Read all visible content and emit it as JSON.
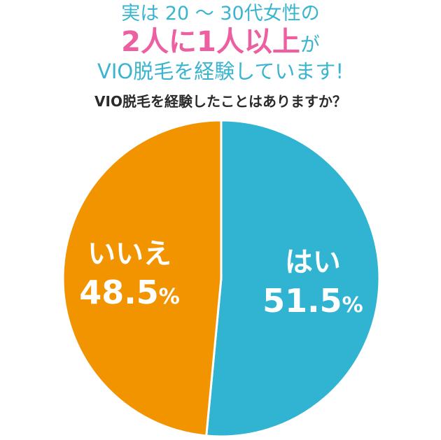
{
  "header": {
    "line1": "実は 20 ～ 30代女性の",
    "line2_emphasis": "2人に1人以上",
    "line2_suffix": "が",
    "line3": "VIO脱毛を経験しています!"
  },
  "question": "VIO脱毛を経験したことはありますか？",
  "colors": {
    "accent_blue": "#3bb5cf",
    "accent_pink": "#ec5fa0",
    "yes": "#30b4d2",
    "no": "#f29400"
  },
  "chart_data": {
    "type": "pie",
    "title": "VIO脱毛を経験したことはありますか？",
    "slices": [
      {
        "label": "はい",
        "value": 51.5,
        "value_text": "51.5",
        "unit": "%",
        "color": "#30b4d2"
      },
      {
        "label": "いいえ",
        "value": 48.5,
        "value_text": "48.5",
        "unit": "%",
        "color": "#f29400"
      }
    ],
    "start_angle": "12 o'clock",
    "direction": "clockwise"
  }
}
